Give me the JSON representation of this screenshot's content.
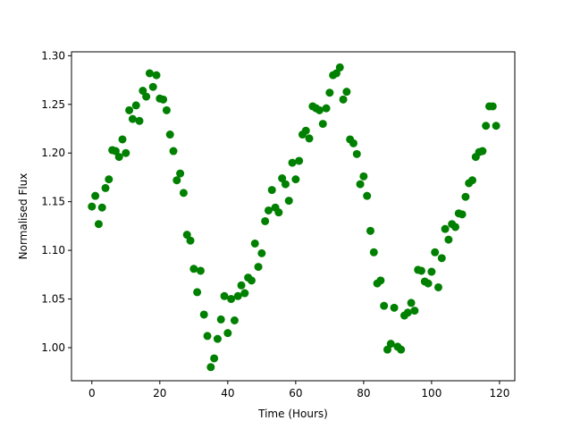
{
  "chart_data": {
    "type": "scatter",
    "xlabel": "Time (Hours)",
    "ylabel": "Normalised Flux",
    "color": "#008000",
    "x": [
      0,
      1,
      2,
      3,
      4,
      5,
      6,
      7,
      8,
      9,
      10,
      11,
      12,
      13,
      14,
      15,
      16,
      17,
      18,
      19,
      20,
      21,
      22,
      23,
      24,
      25,
      26,
      27,
      28,
      29,
      30,
      31,
      32,
      33,
      34,
      35,
      36,
      37,
      38,
      39,
      40,
      41,
      42,
      43,
      44,
      45,
      46,
      47,
      48,
      49,
      50,
      51,
      52,
      53,
      54,
      55,
      56,
      57,
      58,
      59,
      60,
      61,
      62,
      63,
      64,
      65,
      66,
      67,
      68,
      69,
      70,
      71,
      72,
      73,
      74,
      75,
      76,
      77,
      78,
      79,
      80,
      81,
      82,
      83,
      84,
      85,
      86,
      87,
      88,
      89,
      90,
      91,
      92,
      93,
      94,
      95,
      96,
      97,
      98,
      99,
      100,
      101,
      102,
      103,
      104,
      105,
      106,
      107,
      108,
      109,
      110,
      111,
      112,
      113,
      114,
      115,
      116,
      117,
      118,
      119
    ],
    "values": [
      1.145,
      1.156,
      1.127,
      1.144,
      1.164,
      1.173,
      1.203,
      1.202,
      1.196,
      1.214,
      1.2,
      1.244,
      1.235,
      1.249,
      1.233,
      1.264,
      1.258,
      1.282,
      1.268,
      1.28,
      1.256,
      1.255,
      1.244,
      1.219,
      1.202,
      1.172,
      1.179,
      1.159,
      1.116,
      1.11,
      1.081,
      1.057,
      1.079,
      1.034,
      1.012,
      0.98,
      0.989,
      1.009,
      1.029,
      1.053,
      1.015,
      1.05,
      1.028,
      1.053,
      1.064,
      1.056,
      1.072,
      1.069,
      1.107,
      1.083,
      1.097,
      1.13,
      1.141,
      1.162,
      1.144,
      1.139,
      1.174,
      1.168,
      1.151,
      1.19,
      1.173,
      1.192,
      1.219,
      1.223,
      1.215,
      1.248,
      1.246,
      1.244,
      1.23,
      1.246,
      1.262,
      1.28,
      1.282,
      1.288,
      1.255,
      1.263,
      1.214,
      1.21,
      1.199,
      1.168,
      1.176,
      1.156,
      1.12,
      1.098,
      1.066,
      1.069,
      1.043,
      0.998,
      1.004,
      1.041,
      1.001,
      0.998,
      1.033,
      1.036,
      1.046,
      1.038,
      1.08,
      1.079,
      1.068,
      1.066,
      1.078,
      1.098,
      1.062,
      1.092,
      1.122,
      1.111,
      1.127,
      1.124,
      1.138,
      1.137,
      1.155,
      1.169,
      1.172,
      1.196,
      1.201,
      1.202,
      1.228,
      1.248,
      1.248,
      1.228
    ],
    "xlim": [
      -6,
      124.5
    ],
    "ylim": [
      0.966,
      1.304
    ],
    "xticks": [
      0,
      20,
      40,
      60,
      80,
      100,
      120
    ],
    "yticks": [
      {
        "value": 1.0,
        "label": "1.00"
      },
      1.05,
      {
        "value": 1.1,
        "label": "1.10"
      },
      1.15,
      {
        "value": 1.2,
        "label": "1.20"
      },
      1.25,
      {
        "value": 1.3,
        "label": "1.30"
      }
    ]
  }
}
